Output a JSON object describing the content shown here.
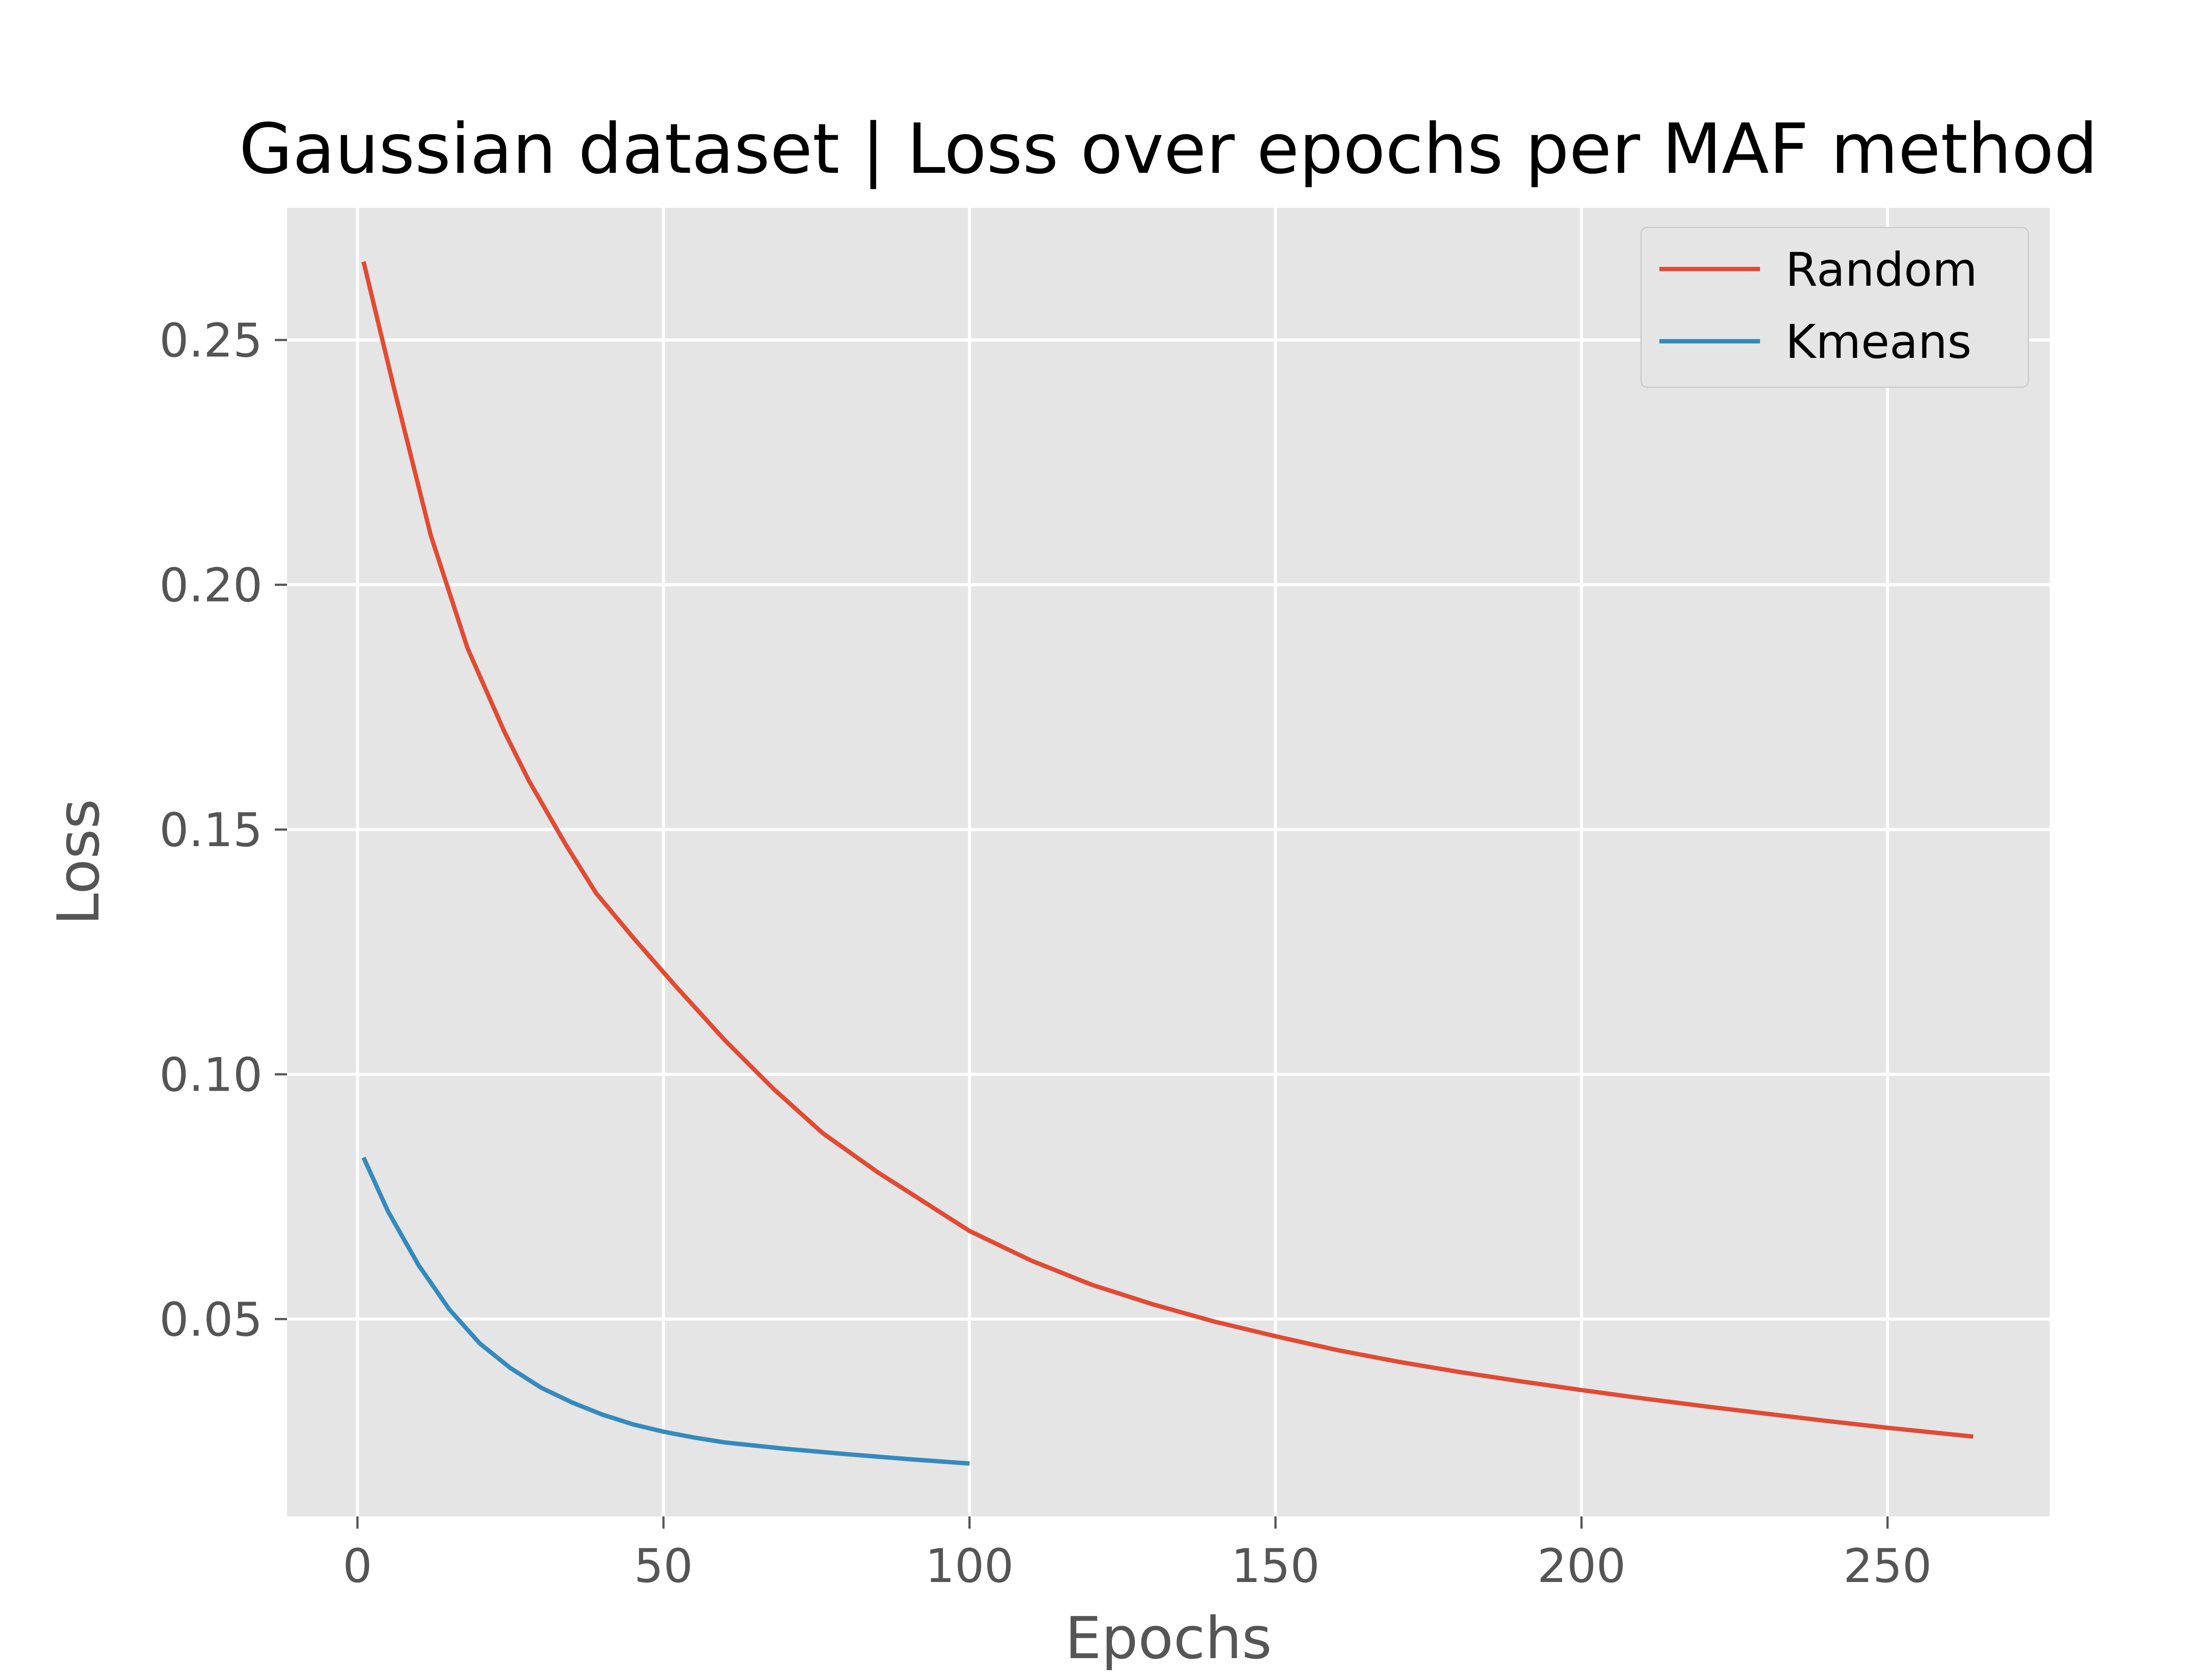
{
  "chart_data": {
    "type": "line",
    "title": "Gaussian dataset | Loss over epochs per MAF method",
    "xlabel": "Epochs",
    "ylabel": "Loss",
    "xlim": [
      -11.5,
      276.5
    ],
    "ylim": [
      0.0097,
      0.277
    ],
    "xticks": [
      0,
      50,
      100,
      150,
      200,
      250
    ],
    "xtick_labels": [
      "0",
      "50",
      "100",
      "150",
      "200",
      "250"
    ],
    "yticks": [
      0.05,
      0.1,
      0.15,
      0.2,
      0.25
    ],
    "ytick_labels": [
      "0.05",
      "0.10",
      "0.15",
      "0.20",
      "0.25"
    ],
    "grid": true,
    "legend_position": "top-right",
    "series": [
      {
        "name": "Random",
        "color": "#E24A33",
        "x": [
          1,
          6,
          12,
          18,
          24,
          28,
          34,
          39,
          45,
          52,
          60,
          68,
          76,
          85,
          95,
          100,
          110,
          120,
          130,
          140,
          150,
          160,
          170,
          180,
          190,
          200,
          210,
          220,
          230,
          240,
          250,
          264
        ],
        "y": [
          0.266,
          0.24,
          0.21,
          0.187,
          0.17,
          0.16,
          0.147,
          0.137,
          0.128,
          0.118,
          0.107,
          0.097,
          0.088,
          0.08,
          0.072,
          0.068,
          0.062,
          0.057,
          0.053,
          0.0495,
          0.0465,
          0.0437,
          0.0413,
          0.0392,
          0.0373,
          0.0355,
          0.0338,
          0.0322,
          0.0307,
          0.0292,
          0.0278,
          0.026
        ]
      },
      {
        "name": "Kmeans",
        "color": "#348ABD",
        "x": [
          1,
          5,
          10,
          15,
          20,
          25,
          30,
          35,
          40,
          45,
          50,
          55,
          60,
          70,
          80,
          90,
          100
        ],
        "y": [
          0.083,
          0.072,
          0.061,
          0.052,
          0.045,
          0.04,
          0.036,
          0.033,
          0.0305,
          0.0285,
          0.027,
          0.0258,
          0.0248,
          0.0235,
          0.0224,
          0.0214,
          0.0205
        ]
      }
    ]
  }
}
